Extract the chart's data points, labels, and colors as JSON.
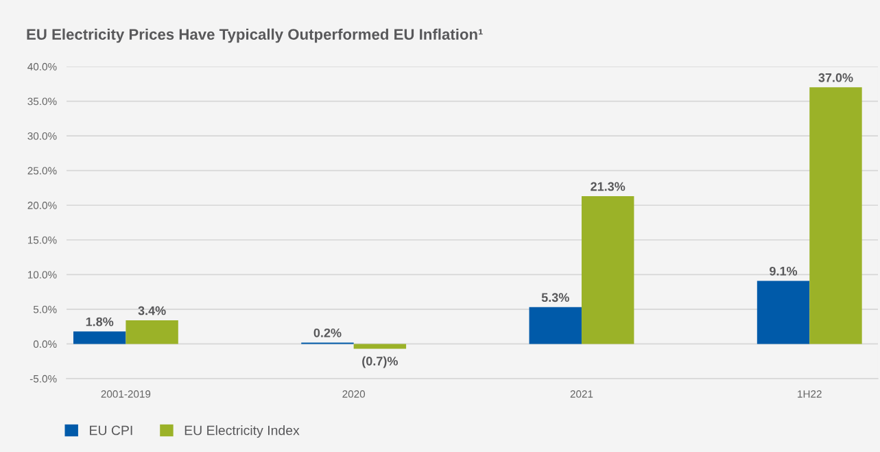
{
  "chart_data": {
    "type": "bar",
    "title": "EU Electricity Prices Have Typically Outperformed EU Inflation¹",
    "categories": [
      "2001-2019",
      "2020",
      "2021",
      "1H22"
    ],
    "series": [
      {
        "name": "EU CPI",
        "color": "#005aa9",
        "values": [
          1.8,
          0.2,
          5.3,
          9.1
        ],
        "value_labels": [
          "1.8%",
          "0.2%",
          "5.3%",
          "9.1%"
        ]
      },
      {
        "name": "EU Electricity Index",
        "color": "#9bb228",
        "values": [
          3.4,
          -0.7,
          21.3,
          37.0
        ],
        "value_labels": [
          "3.4%",
          "(0.7)%",
          "21.3%",
          "37.0%"
        ]
      }
    ],
    "ylim": [
      -5,
      40
    ],
    "yticks": [
      {
        "value": -5,
        "label": "-5.0%"
      },
      {
        "value": 0,
        "label": "0.0%"
      },
      {
        "value": 5,
        "label": "5.0%"
      },
      {
        "value": 10,
        "label": "10.0%"
      },
      {
        "value": 15,
        "label": "15.0%"
      },
      {
        "value": 20,
        "label": "20.0%"
      },
      {
        "value": 25,
        "label": "25.0%"
      },
      {
        "value": 30,
        "label": "30.0%"
      },
      {
        "value": 35,
        "label": "35.0%"
      },
      {
        "value": 40,
        "label": "40.0%"
      }
    ],
    "grid": "y",
    "legend": "bottom left"
  }
}
